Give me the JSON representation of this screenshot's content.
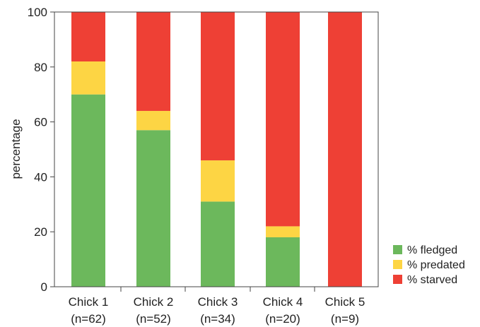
{
  "chart_data": {
    "type": "bar",
    "stacked": true,
    "ylabel": "percentage",
    "xlabel": "",
    "ylim": [
      0,
      100
    ],
    "yticks": [
      0,
      20,
      40,
      60,
      80,
      100
    ],
    "categories": [
      "Chick 1",
      "Chick 2",
      "Chick 3",
      "Chick 4",
      "Chick 5"
    ],
    "category_counts": [
      "(n=62)",
      "(n=52)",
      "(n=34)",
      "(n=20)",
      "(n=9)"
    ],
    "series": [
      {
        "name": "% fledged",
        "color": "#6cb85c",
        "values": [
          70,
          57,
          31,
          18,
          0
        ]
      },
      {
        "name": "% predated",
        "color": "#fdd544",
        "values": [
          12,
          7,
          15,
          4,
          0
        ]
      },
      {
        "name": "% starved",
        "color": "#ee4035",
        "values": [
          18,
          36,
          54,
          78,
          100
        ]
      }
    ],
    "legend_position": "bottom-right",
    "grid": false
  }
}
